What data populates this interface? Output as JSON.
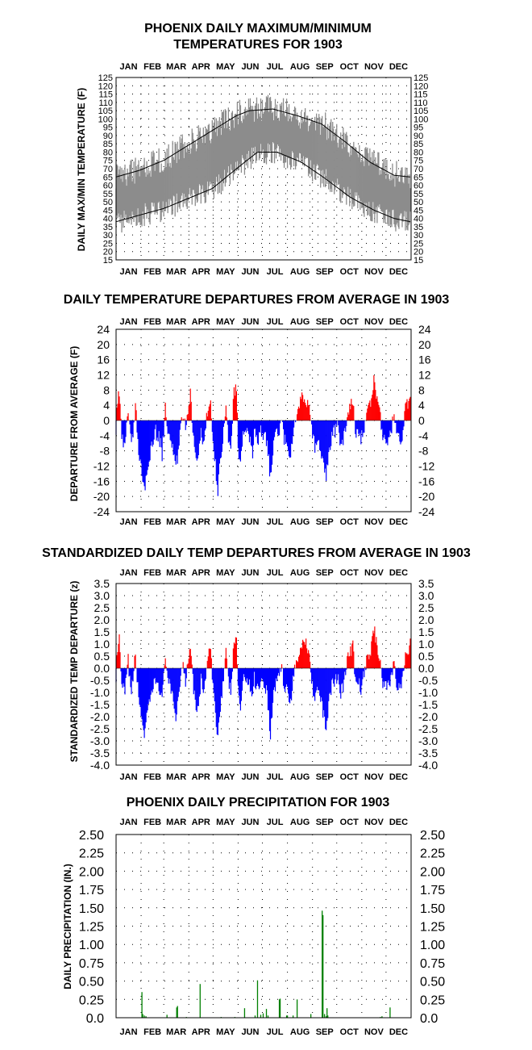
{
  "chart_data": [
    {
      "id": "temp",
      "type": "area",
      "title_lines": [
        "PHOENIX DAILY MAXIMUM/MINIMUM",
        "TEMPERATURES FOR 1903"
      ],
      "ylabel": "DAILY MAX/MIN TEMPERATURE (F)",
      "months": [
        "JAN",
        "FEB",
        "MAR",
        "APR",
        "MAY",
        "JUN",
        "JUL",
        "AUG",
        "SEP",
        "OCT",
        "NOV",
        "DEC"
      ],
      "ylim": [
        15,
        125
      ],
      "yticks": [
        15,
        20,
        25,
        30,
        35,
        40,
        45,
        50,
        55,
        60,
        65,
        70,
        75,
        80,
        85,
        90,
        95,
        100,
        105,
        110,
        115,
        120,
        125
      ],
      "grid": true,
      "series": [
        {
          "name": "daily range",
          "role": "max-min band",
          "color": "#8c8c8c"
        },
        {
          "role": "normal max",
          "color": "#000000",
          "days": [
            1,
            30,
            60,
            90,
            120,
            150,
            166,
            195,
            225,
            255,
            285,
            315,
            345,
            365
          ],
          "values": [
            65,
            69,
            75,
            84,
            93,
            102,
            105,
            106,
            102,
            97,
            86,
            74,
            66,
            65
          ]
        },
        {
          "role": "normal min",
          "color": "#000000",
          "days": [
            1,
            30,
            60,
            90,
            120,
            150,
            176,
            200,
            230,
            260,
            290,
            320,
            345,
            365
          ],
          "values": [
            38,
            42,
            46,
            52,
            58,
            70,
            80,
            80,
            74,
            64,
            53,
            45,
            40,
            38
          ]
        }
      ]
    },
    {
      "id": "dep",
      "type": "bar",
      "title": "DAILY TEMPERATURE DEPARTURES FROM AVERAGE IN 1903",
      "ylabel": "DEPARTURE FROM AVERAGE (F)",
      "months": [
        "JAN",
        "FEB",
        "MAR",
        "APR",
        "MAY",
        "JUN",
        "JUL",
        "AUG",
        "SEP",
        "OCT",
        "NOV",
        "DEC"
      ],
      "ylim": [
        -24,
        24
      ],
      "yticks": [
        24,
        20,
        16,
        12,
        8,
        4,
        0,
        -4,
        -8,
        -12,
        -16,
        -20,
        -24
      ],
      "positive_color": "#ff0000",
      "negative_color": "#0000ff",
      "grid": true,
      "keypoints": [
        [
          1,
          -2
        ],
        [
          3,
          5
        ],
        [
          5,
          7
        ],
        [
          8,
          -5
        ],
        [
          12,
          -6
        ],
        [
          16,
          2
        ],
        [
          20,
          -7
        ],
        [
          25,
          4
        ],
        [
          29,
          -8
        ],
        [
          33,
          -13
        ],
        [
          36,
          -18
        ],
        [
          40,
          -12
        ],
        [
          46,
          -6
        ],
        [
          50,
          -3
        ],
        [
          55,
          -5
        ],
        [
          58,
          -9
        ],
        [
          62,
          4
        ],
        [
          66,
          -4
        ],
        [
          72,
          -9
        ],
        [
          75,
          -13
        ],
        [
          80,
          -4
        ],
        [
          84,
          2
        ],
        [
          87,
          -3
        ],
        [
          93,
          7
        ],
        [
          97,
          -5
        ],
        [
          100,
          -10
        ],
        [
          102,
          -12
        ],
        [
          106,
          -3
        ],
        [
          110,
          -6
        ],
        [
          114,
          2
        ],
        [
          118,
          5
        ],
        [
          121,
          -6
        ],
        [
          124,
          -12
        ],
        [
          127,
          -18
        ],
        [
          130,
          -10
        ],
        [
          134,
          -3
        ],
        [
          137,
          4
        ],
        [
          140,
          -4
        ],
        [
          143,
          -6
        ],
        [
          147,
          7
        ],
        [
          150,
          9
        ],
        [
          152,
          -7
        ],
        [
          155,
          -12
        ],
        [
          158,
          -4
        ],
        [
          162,
          -2
        ],
        [
          166,
          -5
        ],
        [
          170,
          -8
        ],
        [
          172,
          -3
        ],
        [
          176,
          -5
        ],
        [
          180,
          -3
        ],
        [
          184,
          -4
        ],
        [
          188,
          -6
        ],
        [
          192,
          -15
        ],
        [
          195,
          -8
        ],
        [
          199,
          -3
        ],
        [
          203,
          -2
        ],
        [
          206,
          2
        ],
        [
          209,
          -6
        ],
        [
          212,
          -4
        ],
        [
          216,
          -10
        ],
        [
          220,
          -4
        ],
        [
          224,
          2
        ],
        [
          228,
          4
        ],
        [
          232,
          6
        ],
        [
          236,
          5
        ],
        [
          240,
          4
        ],
        [
          243,
          -3
        ],
        [
          247,
          -7
        ],
        [
          250,
          -5
        ],
        [
          254,
          -8
        ],
        [
          258,
          -12
        ],
        [
          261,
          -15
        ],
        [
          264,
          -9
        ],
        [
          268,
          -4
        ],
        [
          271,
          -3
        ],
        [
          275,
          -2
        ],
        [
          279,
          -6
        ],
        [
          283,
          -4
        ],
        [
          287,
          2
        ],
        [
          290,
          4
        ],
        [
          294,
          6
        ],
        [
          297,
          -3
        ],
        [
          300,
          -4
        ],
        [
          304,
          -5
        ],
        [
          307,
          -3
        ],
        [
          311,
          2
        ],
        [
          315,
          4
        ],
        [
          318,
          7
        ],
        [
          320,
          10
        ],
        [
          323,
          7
        ],
        [
          327,
          3
        ],
        [
          330,
          -3
        ],
        [
          334,
          -4
        ],
        [
          338,
          -5
        ],
        [
          341,
          -3
        ],
        [
          345,
          2
        ],
        [
          348,
          -4
        ],
        [
          352,
          -5
        ],
        [
          356,
          -3
        ],
        [
          359,
          3
        ],
        [
          362,
          4
        ],
        [
          365,
          7
        ]
      ]
    },
    {
      "id": "std",
      "type": "bar",
      "title": "STANDARDIZED DAILY TEMP DEPARTURES FROM AVERAGE IN 1903",
      "ylabel": "STANDARDIZED TEMP DEPARTURE (z)",
      "months": [
        "JAN",
        "FEB",
        "MAR",
        "APR",
        "MAY",
        "JUN",
        "JUL",
        "AUG",
        "SEP",
        "OCT",
        "NOV",
        "DEC"
      ],
      "ylim": [
        -4.0,
        3.5
      ],
      "yticks": [
        "3.5",
        "3.0",
        "2.5",
        "2.0",
        "1.5",
        "1.0",
        "0.5",
        "0.0",
        "-0.5",
        "-1.0",
        "-1.5",
        "-2.0",
        "-2.5",
        "-3.0",
        "-3.5",
        "-4.0"
      ],
      "positive_color": "#ff0000",
      "negative_color": "#0000ff",
      "grid": true,
      "keypoints": [
        [
          1,
          -0.3
        ],
        [
          3,
          0.8
        ],
        [
          5,
          1.1
        ],
        [
          8,
          -0.8
        ],
        [
          12,
          -1.0
        ],
        [
          16,
          0.3
        ],
        [
          20,
          -1.1
        ],
        [
          25,
          0.6
        ],
        [
          29,
          -1.3
        ],
        [
          33,
          -2.0
        ],
        [
          36,
          -2.8
        ],
        [
          40,
          -1.9
        ],
        [
          46,
          -0.9
        ],
        [
          50,
          -0.5
        ],
        [
          55,
          -0.8
        ],
        [
          58,
          -1.4
        ],
        [
          62,
          0.6
        ],
        [
          66,
          -0.6
        ],
        [
          72,
          -1.4
        ],
        [
          75,
          -2.0
        ],
        [
          80,
          -0.6
        ],
        [
          84,
          0.3
        ],
        [
          87,
          -0.5
        ],
        [
          93,
          1.1
        ],
        [
          97,
          -0.8
        ],
        [
          100,
          -1.5
        ],
        [
          102,
          -1.8
        ],
        [
          106,
          -0.5
        ],
        [
          110,
          -0.9
        ],
        [
          114,
          0.3
        ],
        [
          118,
          0.8
        ],
        [
          121,
          -0.9
        ],
        [
          124,
          -1.8
        ],
        [
          127,
          -2.8
        ],
        [
          130,
          -1.5
        ],
        [
          134,
          -0.4
        ],
        [
          137,
          0.6
        ],
        [
          140,
          -0.6
        ],
        [
          143,
          -0.9
        ],
        [
          147,
          1.0
        ],
        [
          150,
          1.4
        ],
        [
          152,
          -1.0
        ],
        [
          155,
          -1.6
        ],
        [
          158,
          -0.6
        ],
        [
          162,
          -0.3
        ],
        [
          166,
          -0.7
        ],
        [
          170,
          -1.1
        ],
        [
          172,
          -0.4
        ],
        [
          176,
          -0.8
        ],
        [
          180,
          -0.5
        ],
        [
          184,
          -0.6
        ],
        [
          188,
          -1.0
        ],
        [
          192,
          -2.8
        ],
        [
          195,
          -1.3
        ],
        [
          199,
          -0.5
        ],
        [
          203,
          -0.3
        ],
        [
          206,
          0.3
        ],
        [
          209,
          -1.0
        ],
        [
          212,
          -0.6
        ],
        [
          216,
          -1.6
        ],
        [
          220,
          -0.6
        ],
        [
          224,
          0.3
        ],
        [
          228,
          0.7
        ],
        [
          232,
          1.2
        ],
        [
          236,
          1.0
        ],
        [
          240,
          0.8
        ],
        [
          243,
          -0.5
        ],
        [
          247,
          -1.2
        ],
        [
          250,
          -0.8
        ],
        [
          254,
          -1.3
        ],
        [
          258,
          -2.0
        ],
        [
          261,
          -2.4
        ],
        [
          264,
          -1.5
        ],
        [
          268,
          -0.7
        ],
        [
          271,
          -0.5
        ],
        [
          275,
          -0.3
        ],
        [
          279,
          -1.0
        ],
        [
          283,
          -0.6
        ],
        [
          287,
          0.3
        ],
        [
          290,
          0.6
        ],
        [
          294,
          0.9
        ],
        [
          297,
          -0.5
        ],
        [
          300,
          -0.6
        ],
        [
          304,
          -0.8
        ],
        [
          307,
          -0.4
        ],
        [
          311,
          0.3
        ],
        [
          315,
          0.6
        ],
        [
          318,
          1.1
        ],
        [
          320,
          1.7
        ],
        [
          323,
          1.1
        ],
        [
          327,
          0.5
        ],
        [
          330,
          -0.5
        ],
        [
          334,
          -0.6
        ],
        [
          338,
          -0.8
        ],
        [
          341,
          -0.4
        ],
        [
          345,
          0.3
        ],
        [
          348,
          -0.6
        ],
        [
          352,
          -0.8
        ],
        [
          356,
          -0.4
        ],
        [
          359,
          0.4
        ],
        [
          362,
          0.6
        ],
        [
          365,
          1.1
        ]
      ]
    },
    {
      "id": "precip",
      "type": "bar",
      "title": "PHOENIX DAILY PRECIPITATION FOR 1903",
      "ylabel": "DAILY PRECIPITATION (IN.)",
      "months": [
        "JAN",
        "FEB",
        "MAR",
        "APR",
        "MAY",
        "JUN",
        "JUL",
        "AUG",
        "SEP",
        "OCT",
        "NOV",
        "DEC"
      ],
      "ylim": [
        0,
        2.5
      ],
      "yticks": [
        "2.50",
        "2.25",
        "2.00",
        "1.75",
        "1.50",
        "1.25",
        "1.00",
        "0.75",
        "0.50",
        "0.25",
        "0.0"
      ],
      "bar_color": "#008000",
      "grid": true,
      "days": [
        33,
        34,
        36,
        38,
        64,
        76,
        77,
        88,
        105,
        131,
        148,
        160,
        173,
        176,
        180,
        183,
        187,
        189,
        203,
        204,
        212,
        213,
        220,
        225,
        242,
        256,
        257,
        259,
        261,
        262,
        263,
        328,
        330,
        340
      ],
      "values": [
        0.35,
        0.05,
        0.03,
        0.02,
        0.04,
        0.14,
        0.16,
        0.01,
        0.46,
        0.01,
        0.01,
        0.13,
        0.03,
        0.51,
        0.04,
        0.06,
        0.12,
        0.03,
        0.25,
        0.26,
        0.03,
        0.03,
        0.03,
        0.25,
        0.05,
        1.46,
        1.4,
        0.05,
        0.02,
        0.13,
        0.03,
        0.01,
        0.02,
        0.14
      ]
    }
  ]
}
